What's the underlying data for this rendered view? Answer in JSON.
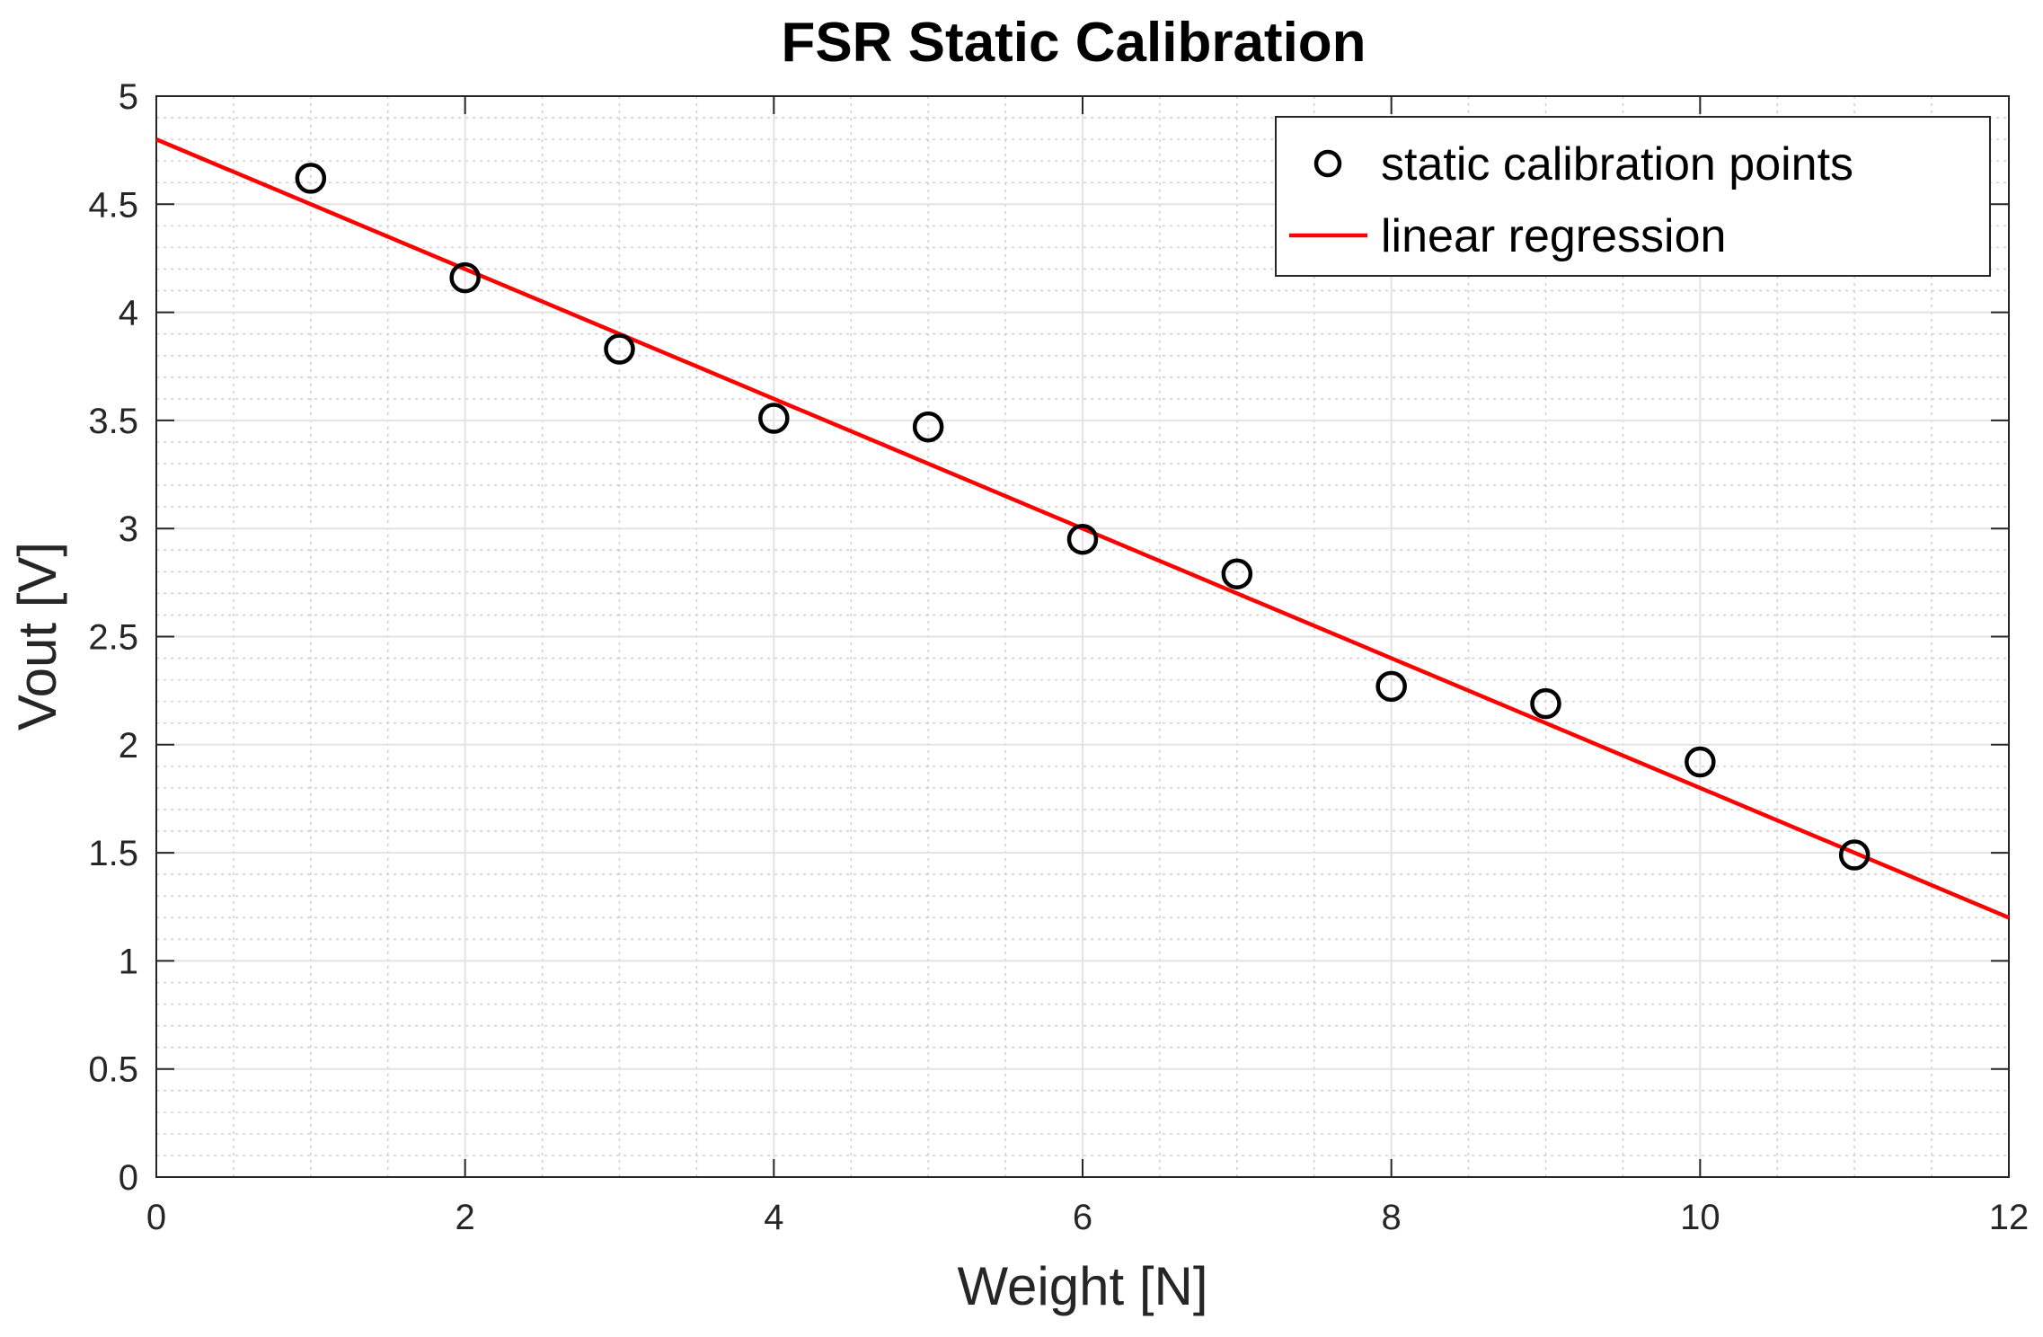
{
  "chart_data": {
    "type": "scatter",
    "title": "FSR Static Calibration",
    "xlabel": "Weight [N]",
    "ylabel": "Vout [V]",
    "xlim": [
      0,
      12
    ],
    "ylim": [
      0,
      5
    ],
    "xticks": [
      0,
      2,
      4,
      6,
      8,
      10,
      12
    ],
    "yticks": [
      0,
      0.5,
      1,
      1.5,
      2,
      2.5,
      3,
      3.5,
      4,
      4.5,
      5
    ],
    "xtick_labels": [
      "0",
      "2",
      "4",
      "6",
      "8",
      "10",
      "12"
    ],
    "ytick_labels": [
      "0",
      "0.5",
      "1",
      "1.5",
      "2",
      "2.5",
      "3",
      "3.5",
      "4",
      "4.5",
      "5"
    ],
    "grid": true,
    "minor_grid": true,
    "legend_location": "top-right",
    "series": [
      {
        "name": "static calibration points",
        "kind": "marker",
        "marker": "circle",
        "color": "#000000",
        "x": [
          1,
          2,
          3,
          4,
          5,
          6,
          7,
          8,
          9,
          10,
          11
        ],
        "y": [
          4.62,
          4.16,
          3.83,
          3.51,
          3.47,
          2.95,
          2.79,
          2.27,
          2.19,
          1.92,
          1.49
        ]
      },
      {
        "name": "linear regression",
        "kind": "line",
        "color": "#ff0000",
        "x": [
          0,
          12
        ],
        "y": [
          4.8,
          1.2
        ]
      }
    ]
  }
}
